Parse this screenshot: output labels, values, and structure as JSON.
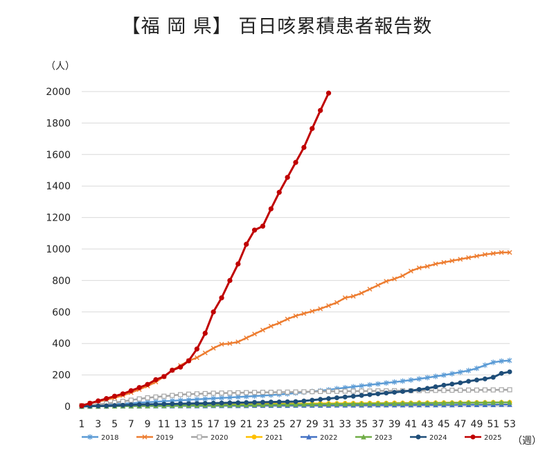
{
  "chart_data": {
    "type": "line",
    "title": "【福 岡 県】 百日咳累積患者報告数",
    "ylabel": "（人）",
    "xlabel": "（週）",
    "ylim": [
      0,
      2000
    ],
    "yticks": [
      0,
      200,
      400,
      600,
      800,
      1000,
      1200,
      1400,
      1600,
      1800,
      2000
    ],
    "xticks": [
      1,
      3,
      5,
      7,
      9,
      11,
      13,
      15,
      17,
      19,
      21,
      23,
      25,
      27,
      29,
      31,
      33,
      35,
      37,
      39,
      41,
      43,
      45,
      47,
      49,
      51,
      53
    ],
    "grid": "horizontal",
    "legend": "bottom",
    "series": [
      {
        "name": "2018",
        "color": "#5b9bd5",
        "marker": "star",
        "values": [
          2,
          5,
          8,
          12,
          15,
          18,
          21,
          24,
          27,
          30,
          33,
          36,
          39,
          42,
          45,
          48,
          51,
          54,
          57,
          60,
          63,
          66,
          69,
          72,
          76,
          80,
          85,
          90,
          95,
          100,
          106,
          113,
          119,
          125,
          131,
          137,
          143,
          149,
          155,
          161,
          168,
          175,
          183,
          191,
          199,
          208,
          218,
          228,
          242,
          262,
          280,
          288,
          292
        ]
      },
      {
        "name": "2019",
        "color": "#ed7d31",
        "marker": "x",
        "values": [
          8,
          20,
          30,
          42,
          55,
          70,
          88,
          108,
          130,
          155,
          190,
          230,
          260,
          290,
          310,
          340,
          370,
          395,
          400,
          410,
          435,
          460,
          485,
          510,
          530,
          555,
          575,
          590,
          605,
          620,
          640,
          660,
          690,
          700,
          720,
          745,
          770,
          795,
          810,
          830,
          860,
          880,
          890,
          905,
          915,
          925,
          935,
          945,
          955,
          965,
          972,
          978,
          978
        ]
      },
      {
        "name": "2020",
        "color": "#a5a5a5",
        "marker": "square",
        "values": [
          3,
          7,
          12,
          18,
          25,
          32,
          40,
          48,
          55,
          60,
          65,
          70,
          75,
          78,
          80,
          82,
          84,
          85,
          86,
          87,
          88,
          89,
          90,
          90,
          91,
          91,
          92,
          93,
          94,
          95,
          96,
          96,
          97,
          97,
          98,
          98,
          99,
          99,
          100,
          100,
          100,
          101,
          101,
          102,
          102,
          103,
          103,
          104,
          104,
          105,
          105,
          106,
          106
        ]
      },
      {
        "name": "2021",
        "color": "#ffc000",
        "marker": "circle",
        "values": [
          1,
          2,
          3,
          4,
          5,
          6,
          7,
          8,
          9,
          10,
          10,
          11,
          12,
          12,
          13,
          13,
          14,
          14,
          15,
          15,
          16,
          16,
          16,
          17,
          17,
          17,
          18,
          18,
          18,
          19,
          19,
          19,
          20,
          20,
          20,
          21,
          21,
          21,
          22,
          22,
          22,
          23,
          23,
          23,
          24,
          24,
          24,
          25,
          25,
          25,
          26,
          26,
          26
        ]
      },
      {
        "name": "2022",
        "color": "#4472c4",
        "marker": "triangle",
        "values": [
          0,
          1,
          1,
          1,
          2,
          2,
          2,
          2,
          3,
          3,
          3,
          3,
          4,
          4,
          4,
          4,
          5,
          5,
          5,
          5,
          5,
          6,
          6,
          6,
          6,
          6,
          7,
          7,
          7,
          7,
          7,
          8,
          8,
          8,
          8,
          8,
          9,
          9,
          9,
          9,
          9,
          10,
          10,
          10,
          10,
          10,
          11,
          11,
          11,
          11,
          11,
          12,
          12
        ]
      },
      {
        "name": "2023",
        "color": "#70ad47",
        "marker": "triangle",
        "values": [
          0,
          1,
          1,
          2,
          2,
          3,
          3,
          4,
          4,
          5,
          5,
          6,
          6,
          7,
          7,
          8,
          8,
          9,
          9,
          10,
          10,
          11,
          11,
          12,
          12,
          13,
          13,
          14,
          14,
          15,
          15,
          16,
          16,
          17,
          17,
          18,
          18,
          19,
          19,
          20,
          20,
          21,
          21,
          22,
          22,
          23,
          23,
          24,
          24,
          25,
          25,
          26,
          26
        ]
      },
      {
        "name": "2024",
        "color": "#1f4e79",
        "marker": "circle",
        "values": [
          1,
          2,
          3,
          4,
          6,
          8,
          10,
          12,
          13,
          14,
          15,
          16,
          17,
          18,
          19,
          20,
          21,
          22,
          23,
          24,
          25,
          26,
          27,
          28,
          29,
          30,
          31,
          35,
          40,
          45,
          50,
          55,
          60,
          65,
          70,
          75,
          80,
          85,
          90,
          95,
          100,
          108,
          115,
          125,
          135,
          142,
          150,
          160,
          168,
          175,
          185,
          210,
          220
        ]
      },
      {
        "name": "2025",
        "color": "#c00000",
        "marker": "circle",
        "values": [
          5,
          20,
          35,
          50,
          65,
          80,
          100,
          120,
          140,
          170,
          190,
          230,
          250,
          290,
          365,
          465,
          600,
          690,
          800,
          905,
          1030,
          1120,
          1145,
          1255,
          1360,
          1455,
          1550,
          1645,
          1765,
          1880,
          1990
        ]
      }
    ]
  }
}
